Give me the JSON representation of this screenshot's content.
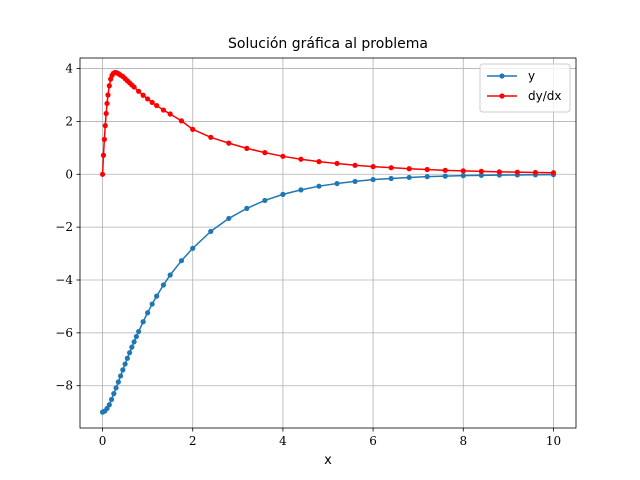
{
  "chart_data": {
    "type": "line",
    "title": "Solución gráfica al problema",
    "xlabel": "x",
    "ylabel": "",
    "xlim": [
      -0.5,
      10.5
    ],
    "ylim": [
      -9.6,
      4.4
    ],
    "xticks": [
      0,
      2,
      4,
      6,
      8,
      10
    ],
    "xtick_labels": [
      "0",
      "2",
      "4",
      "6",
      "8",
      "10"
    ],
    "yticks": [
      -8,
      -6,
      -4,
      -2,
      0,
      2,
      4
    ],
    "ytick_labels": [
      "−8",
      "−6",
      "−4",
      "−2",
      "0",
      "2",
      "4"
    ],
    "grid": true,
    "legend_position": "top-right",
    "series": [
      {
        "name": "y",
        "color": "#1f77b4",
        "x": [
          0.0,
          0.05,
          0.1,
          0.15,
          0.2,
          0.25,
          0.3,
          0.35,
          0.4,
          0.45,
          0.5,
          0.55,
          0.6,
          0.65,
          0.7,
          0.75,
          0.8,
          0.9,
          1.0,
          1.1,
          1.2,
          1.35,
          1.5,
          1.75,
          2.0,
          2.4,
          2.8,
          3.2,
          3.6,
          4.0,
          4.4,
          4.8,
          5.2,
          5.6,
          6.0,
          6.4,
          6.8,
          7.2,
          7.6,
          8.0,
          8.4,
          8.8,
          9.2,
          9.6,
          10.0
        ],
        "y": [
          -9.0,
          -8.96,
          -8.86,
          -8.72,
          -8.52,
          -8.3,
          -8.08,
          -7.86,
          -7.63,
          -7.4,
          -7.18,
          -6.96,
          -6.75,
          -6.54,
          -6.34,
          -6.14,
          -5.95,
          -5.58,
          -5.24,
          -4.91,
          -4.61,
          -4.19,
          -3.81,
          -3.27,
          -2.8,
          -2.16,
          -1.67,
          -1.29,
          -0.99,
          -0.76,
          -0.59,
          -0.45,
          -0.35,
          -0.27,
          -0.2,
          -0.16,
          -0.12,
          -0.09,
          -0.07,
          -0.05,
          -0.04,
          -0.03,
          -0.025,
          -0.02,
          -0.015
        ]
      },
      {
        "name": "dy/dx",
        "color": "#ff0000",
        "x": [
          0.0,
          0.02,
          0.04,
          0.06,
          0.08,
          0.1,
          0.12,
          0.15,
          0.18,
          0.21,
          0.24,
          0.27,
          0.3,
          0.33,
          0.36,
          0.4,
          0.45,
          0.5,
          0.55,
          0.6,
          0.65,
          0.7,
          0.8,
          0.9,
          1.0,
          1.1,
          1.2,
          1.35,
          1.5,
          1.75,
          2.0,
          2.4,
          2.8,
          3.2,
          3.6,
          4.0,
          4.4,
          4.8,
          5.2,
          5.6,
          6.0,
          6.4,
          6.8,
          7.2,
          7.6,
          8.0,
          8.4,
          8.8,
          9.2,
          9.6,
          10.0
        ],
        "y": [
          0.0,
          0.72,
          1.32,
          1.84,
          2.3,
          2.68,
          3.0,
          3.35,
          3.6,
          3.74,
          3.82,
          3.85,
          3.85,
          3.83,
          3.8,
          3.75,
          3.7,
          3.62,
          3.54,
          3.46,
          3.38,
          3.3,
          3.14,
          2.99,
          2.85,
          2.72,
          2.6,
          2.43,
          2.28,
          2.02,
          1.7,
          1.4,
          1.18,
          0.98,
          0.82,
          0.68,
          0.57,
          0.48,
          0.41,
          0.34,
          0.29,
          0.25,
          0.21,
          0.18,
          0.15,
          0.13,
          0.11,
          0.09,
          0.08,
          0.07,
          0.06
        ]
      }
    ]
  }
}
